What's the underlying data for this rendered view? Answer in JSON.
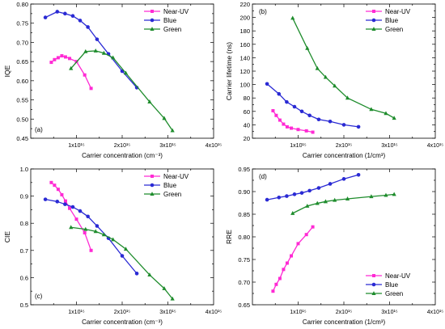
{
  "x_tick_labels": [
    "1x10¹⁵",
    "2x10¹⁵",
    "3x10¹⁵",
    "4x10¹⁵"
  ],
  "chart_data": [
    {
      "type": "line",
      "panel_label": "(a)",
      "xlabel": "Carrier concentration (cm⁻³)",
      "ylabel": "IQE",
      "xlim": [
        0,
        4000000000000000.0
      ],
      "ylim": [
        0.45,
        0.8
      ],
      "yticks": [
        0.45,
        0.5,
        0.55,
        0.6,
        0.65,
        0.7,
        0.75,
        0.8
      ],
      "ytick_labels": [
        "0.45",
        "0.50",
        "0.55",
        "0.60",
        "0.65",
        "0.70",
        "0.75",
        "0.80"
      ],
      "legend_position": "top-right",
      "series": [
        {
          "name": "Near-UV",
          "color": "#ff2ad4",
          "marker": "square",
          "points": [
            [
              450000000000000.0,
              0.648
            ],
            [
              520000000000000.0,
              0.655
            ],
            [
              600000000000000.0,
              0.66
            ],
            [
              680000000000000.0,
              0.665
            ],
            [
              760000000000000.0,
              0.662
            ],
            [
              850000000000000.0,
              0.658
            ],
            [
              1000000000000000.0,
              0.65
            ],
            [
              1180000000000000.0,
              0.615
            ],
            [
              1320000000000000.0,
              0.58
            ]
          ]
        },
        {
          "name": "Blue",
          "color": "#2a2ad4",
          "marker": "circle",
          "points": [
            [
              320000000000000.0,
              0.765
            ],
            [
              580000000000000.0,
              0.78
            ],
            [
              750000000000000.0,
              0.775
            ],
            [
              920000000000000.0,
              0.769
            ],
            [
              1080000000000000.0,
              0.757
            ],
            [
              1250000000000000.0,
              0.74
            ],
            [
              1450000000000000.0,
              0.708
            ],
            [
              1700000000000000.0,
              0.67
            ],
            [
              2000000000000000.0,
              0.625
            ],
            [
              2320000000000000.0,
              0.582
            ]
          ]
        },
        {
          "name": "Green",
          "color": "#1e8c2c",
          "marker": "triangle",
          "points": [
            [
              880000000000000.0,
              0.632
            ],
            [
              1200000000000000.0,
              0.676
            ],
            [
              1420000000000000.0,
              0.678
            ],
            [
              1600000000000000.0,
              0.672
            ],
            [
              1800000000000000.0,
              0.66
            ],
            [
              2080000000000000.0,
              0.62
            ],
            [
              2600000000000000.0,
              0.545
            ],
            [
              2920000000000000.0,
              0.502
            ],
            [
              3100000000000000.0,
              0.47
            ]
          ]
        }
      ]
    },
    {
      "type": "line",
      "panel_label": "(b)",
      "xlabel": "Carrier concentration (1/cm³)",
      "ylabel": "Carrier lifetime (ns)",
      "xlim": [
        0,
        4000000000000000.0
      ],
      "ylim": [
        20,
        220
      ],
      "yticks": [
        20,
        40,
        60,
        80,
        100,
        120,
        140,
        160,
        180,
        200,
        220
      ],
      "ytick_labels": [
        "20",
        "40",
        "60",
        "80",
        "100",
        "120",
        "140",
        "160",
        "180",
        "200",
        "220"
      ],
      "legend_position": "top-right",
      "series": [
        {
          "name": "Near-UV",
          "color": "#ff2ad4",
          "marker": "square",
          "points": [
            [
              450000000000000.0,
              61
            ],
            [
              520000000000000.0,
              54
            ],
            [
              600000000000000.0,
              47
            ],
            [
              680000000000000.0,
              41
            ],
            [
              760000000000000.0,
              37
            ],
            [
              850000000000000.0,
              35
            ],
            [
              1000000000000000.0,
              33
            ],
            [
              1180000000000000.0,
              31
            ],
            [
              1320000000000000.0,
              29
            ]
          ]
        },
        {
          "name": "Blue",
          "color": "#2a2ad4",
          "marker": "circle",
          "points": [
            [
              320000000000000.0,
              101
            ],
            [
              580000000000000.0,
              86
            ],
            [
              750000000000000.0,
              74
            ],
            [
              920000000000000.0,
              67
            ],
            [
              1080000000000000.0,
              60
            ],
            [
              1250000000000000.0,
              54
            ],
            [
              1450000000000000.0,
              48
            ],
            [
              1700000000000000.0,
              45
            ],
            [
              2000000000000000.0,
              40
            ],
            [
              2320000000000000.0,
              37
            ]
          ]
        },
        {
          "name": "Green",
          "color": "#1e8c2c",
          "marker": "triangle",
          "points": [
            [
              880000000000000.0,
              199
            ],
            [
              1200000000000000.0,
              154
            ],
            [
              1420000000000000.0,
              124
            ],
            [
              1600000000000000.0,
              111
            ],
            [
              1800000000000000.0,
              98
            ],
            [
              2080000000000000.0,
              80
            ],
            [
              2600000000000000.0,
              63
            ],
            [
              2920000000000000.0,
              57
            ],
            [
              3100000000000000.0,
              50
            ]
          ]
        }
      ]
    },
    {
      "type": "line",
      "panel_label": "(c)",
      "xlabel": "Carrier concentration (cm⁻³)",
      "ylabel": "CIE",
      "xlim": [
        0,
        4000000000000000.0
      ],
      "ylim": [
        0.5,
        1.0
      ],
      "yticks": [
        0.5,
        0.6,
        0.7,
        0.8,
        0.9,
        1.0
      ],
      "ytick_labels": [
        "0.5",
        "0.6",
        "0.7",
        "0.8",
        "0.9",
        "1.0"
      ],
      "legend_position": "top-right",
      "series": [
        {
          "name": "Near-UV",
          "color": "#ff2ad4",
          "marker": "square",
          "points": [
            [
              450000000000000.0,
              0.95
            ],
            [
              520000000000000.0,
              0.94
            ],
            [
              600000000000000.0,
              0.925
            ],
            [
              680000000000000.0,
              0.905
            ],
            [
              760000000000000.0,
              0.882
            ],
            [
              850000000000000.0,
              0.855
            ],
            [
              1000000000000000.0,
              0.815
            ],
            [
              1180000000000000.0,
              0.765
            ],
            [
              1320000000000000.0,
              0.7
            ]
          ]
        },
        {
          "name": "Blue",
          "color": "#2a2ad4",
          "marker": "circle",
          "points": [
            [
              320000000000000.0,
              0.888
            ],
            [
              580000000000000.0,
              0.88
            ],
            [
              750000000000000.0,
              0.87
            ],
            [
              920000000000000.0,
              0.86
            ],
            [
              1080000000000000.0,
              0.845
            ],
            [
              1250000000000000.0,
              0.825
            ],
            [
              1450000000000000.0,
              0.79
            ],
            [
              1700000000000000.0,
              0.745
            ],
            [
              2000000000000000.0,
              0.68
            ],
            [
              2320000000000000.0,
              0.615
            ]
          ]
        },
        {
          "name": "Green",
          "color": "#1e8c2c",
          "marker": "triangle",
          "points": [
            [
              880000000000000.0,
              0.785
            ],
            [
              1200000000000000.0,
              0.778
            ],
            [
              1420000000000000.0,
              0.77
            ],
            [
              1600000000000000.0,
              0.758
            ],
            [
              1800000000000000.0,
              0.74
            ],
            [
              2080000000000000.0,
              0.705
            ],
            [
              2600000000000000.0,
              0.61
            ],
            [
              2920000000000000.0,
              0.56
            ],
            [
              3100000000000000.0,
              0.522
            ]
          ]
        }
      ]
    },
    {
      "type": "line",
      "panel_label": "(d)",
      "xlabel": "Carrier concentration (1/cm³)",
      "ylabel": "RRE",
      "xlim": [
        0,
        4000000000000000.0
      ],
      "ylim": [
        0.65,
        0.95
      ],
      "yticks": [
        0.65,
        0.7,
        0.75,
        0.8,
        0.85,
        0.9,
        0.95
      ],
      "ytick_labels": [
        "0.65",
        "0.70",
        "0.75",
        "0.80",
        "0.85",
        "0.90",
        "0.95"
      ],
      "legend_position": "bottom-right",
      "series": [
        {
          "name": "Near-UV",
          "color": "#ff2ad4",
          "marker": "square",
          "points": [
            [
              450000000000000.0,
              0.68
            ],
            [
              520000000000000.0,
              0.695
            ],
            [
              600000000000000.0,
              0.708
            ],
            [
              680000000000000.0,
              0.728
            ],
            [
              760000000000000.0,
              0.742
            ],
            [
              850000000000000.0,
              0.758
            ],
            [
              1000000000000000.0,
              0.785
            ],
            [
              1180000000000000.0,
              0.805
            ],
            [
              1320000000000000.0,
              0.822
            ]
          ]
        },
        {
          "name": "Blue",
          "color": "#2a2ad4",
          "marker": "circle",
          "points": [
            [
              320000000000000.0,
              0.882
            ],
            [
              580000000000000.0,
              0.887
            ],
            [
              750000000000000.0,
              0.89
            ],
            [
              920000000000000.0,
              0.894
            ],
            [
              1080000000000000.0,
              0.897
            ],
            [
              1250000000000000.0,
              0.902
            ],
            [
              1450000000000000.0,
              0.908
            ],
            [
              1700000000000000.0,
              0.917
            ],
            [
              2000000000000000.0,
              0.928
            ],
            [
              2320000000000000.0,
              0.937
            ]
          ]
        },
        {
          "name": "Green",
          "color": "#1e8c2c",
          "marker": "triangle",
          "points": [
            [
              880000000000000.0,
              0.852
            ],
            [
              1200000000000000.0,
              0.868
            ],
            [
              1420000000000000.0,
              0.874
            ],
            [
              1600000000000000.0,
              0.878
            ],
            [
              1800000000000000.0,
              0.881
            ],
            [
              2080000000000000.0,
              0.884
            ],
            [
              2600000000000000.0,
              0.889
            ],
            [
              2920000000000000.0,
              0.892
            ],
            [
              3100000000000000.0,
              0.894
            ]
          ]
        }
      ]
    }
  ]
}
